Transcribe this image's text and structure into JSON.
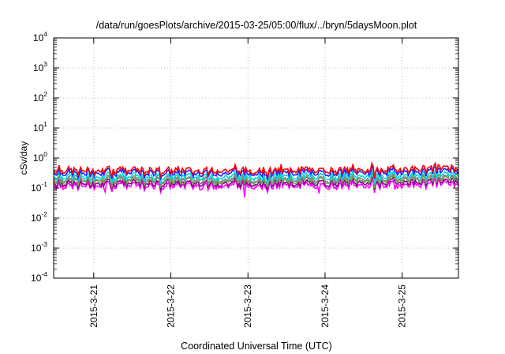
{
  "chart_data": {
    "type": "line",
    "title": "/data/run/goesPlots/archive/2015-03-25/05:00/flux/../bryn/5daysMoon.plot",
    "xlabel": "Coordinated Universal Time (UTC)",
    "ylabel": "cSv/day",
    "yscale": "log",
    "ylim": [
      0.0001,
      10000
    ],
    "xlim": [
      -0.52,
      4.73
    ],
    "grid": true,
    "y_ticks": [
      {
        "base": "10",
        "exp": "-4"
      },
      {
        "base": "10",
        "exp": "-3"
      },
      {
        "base": "10",
        "exp": "-2"
      },
      {
        "base": "10",
        "exp": "-1"
      },
      {
        "base": "10",
        "exp": "0"
      },
      {
        "base": "10",
        "exp": "1"
      },
      {
        "base": "10",
        "exp": "2"
      },
      {
        "base": "10",
        "exp": "3"
      },
      {
        "base": "10",
        "exp": "4"
      }
    ],
    "x_ticks": [
      {
        "label": "2015-3-21",
        "value": 0
      },
      {
        "label": "2015-3-22",
        "value": 1
      },
      {
        "label": "2015-3-23",
        "value": 2
      },
      {
        "label": "2015-3-24",
        "value": 3
      },
      {
        "label": "2015-3-25",
        "value": 4
      }
    ],
    "series": [
      {
        "color": "#ff0000",
        "level": 0.39
      },
      {
        "color": "#2222ff",
        "level": 0.32
      },
      {
        "color": "#00dddd",
        "level": 0.24
      },
      {
        "color": "#888888",
        "level": 0.195
      },
      {
        "color": "#66aa44",
        "level": 0.175
      },
      {
        "color": "#880088",
        "level": 0.145
      },
      {
        "color": "#ff00ff",
        "level": 0.12
      }
    ]
  }
}
